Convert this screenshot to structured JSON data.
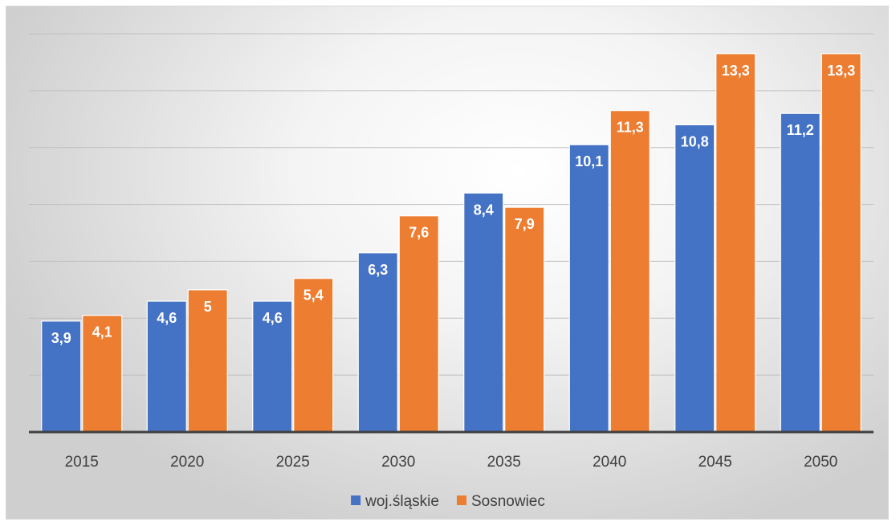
{
  "chart_data": {
    "type": "bar",
    "title": "",
    "xlabel": "",
    "ylabel": "",
    "categories": [
      "2015",
      "2020",
      "2025",
      "2030",
      "2035",
      "2040",
      "2045",
      "2050"
    ],
    "series": [
      {
        "name": "woj.śląskie",
        "color": "#4472C4",
        "values": [
          3.9,
          4.6,
          4.6,
          6.3,
          8.4,
          10.1,
          10.8,
          11.2
        ],
        "labels": [
          "3,9",
          "4,6",
          "4,6",
          "6,3",
          "8,4",
          "10,1",
          "10,8",
          "11,2"
        ]
      },
      {
        "name": "Sosnowiec",
        "color": "#ED7D31",
        "values": [
          4.1,
          5.0,
          5.4,
          7.6,
          7.9,
          11.3,
          13.3,
          13.3
        ],
        "labels": [
          "4,1",
          "5",
          "5,4",
          "7,6",
          "7,9",
          "11,3",
          "13,3",
          "13,3"
        ]
      }
    ],
    "ylim": [
      0,
      14
    ],
    "y_gridline_step": 2,
    "y_tick_labels_shown": false,
    "grid": true,
    "legend_position": "bottom",
    "data_labels": "inside-end"
  }
}
